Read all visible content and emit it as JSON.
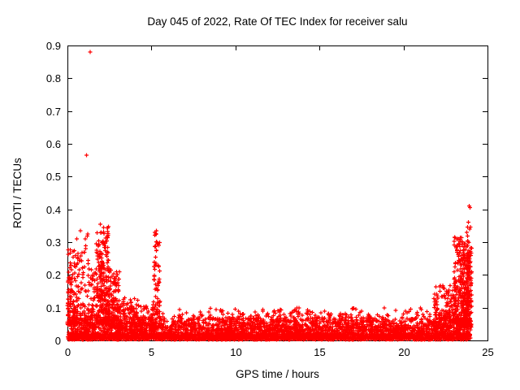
{
  "chart_data": {
    "type": "scatter",
    "title": "Day 045 of 2022, Rate Of TEC Index for receiver salu",
    "xlabel": "GPS time / hours",
    "ylabel": "ROTI / TECUs",
    "xlim": [
      0,
      25
    ],
    "ylim": [
      0,
      0.9
    ],
    "x_tick_values": [
      0,
      5,
      10,
      15,
      20,
      25
    ],
    "x_tick_labels": [
      "0",
      "5",
      "10",
      "15",
      "20",
      "25"
    ],
    "y_tick_values": [
      0,
      0.1,
      0.2,
      0.3,
      0.4,
      0.5,
      0.6,
      0.7,
      0.8,
      0.9
    ],
    "y_tick_labels": [
      "0",
      "0.1",
      "0.2",
      "0.3",
      "0.4",
      "0.5",
      "0.6",
      "0.7",
      "0.8",
      "0.9"
    ],
    "grid": false,
    "legend": "none",
    "marker": "plus",
    "marker_color": "#ff0000",
    "axis_color": "#000000",
    "seed": 45,
    "scatter_segments": [
      {
        "x0": 0.0,
        "x1": 24.0,
        "n": 1400,
        "ymin": 0.002,
        "ymax": 0.02,
        "bias": 1.0
      },
      {
        "x0": 0.0,
        "x1": 24.0,
        "n": 2200,
        "ymin": 0.004,
        "ymax": 0.07,
        "bias": 2.2
      },
      {
        "x0": 0.0,
        "x1": 24.0,
        "n": 500,
        "ymin": 0.02,
        "ymax": 0.1,
        "bias": 3.0
      },
      {
        "x0": 0.0,
        "x1": 0.6,
        "n": 130,
        "ymin": 0.05,
        "ymax": 0.28,
        "bias": 1.8
      },
      {
        "x0": 0.55,
        "x1": 1.25,
        "n": 90,
        "ymin": 0.05,
        "ymax": 0.33,
        "bias": 2.0
      },
      {
        "x0": 1.2,
        "x1": 1.7,
        "n": 60,
        "ymin": 0.04,
        "ymax": 0.22,
        "bias": 2.0
      },
      {
        "x0": 1.7,
        "x1": 2.45,
        "n": 280,
        "ymin": 0.05,
        "ymax": 0.35,
        "bias": 1.8
      },
      {
        "x0": 2.4,
        "x1": 3.1,
        "n": 150,
        "ymin": 0.04,
        "ymax": 0.22,
        "bias": 2.0
      },
      {
        "x0": 3.0,
        "x1": 4.3,
        "n": 130,
        "ymin": 0.03,
        "ymax": 0.13,
        "bias": 2.0
      },
      {
        "x0": 4.2,
        "x1": 5.1,
        "n": 70,
        "ymin": 0.03,
        "ymax": 0.11,
        "bias": 2.2
      },
      {
        "x0": 5.15,
        "x1": 5.5,
        "n": 55,
        "ymin": 0.08,
        "ymax": 0.33,
        "bias": 1.1
      },
      {
        "x0": 5.0,
        "x1": 5.7,
        "n": 45,
        "ymin": 0.04,
        "ymax": 0.12,
        "bias": 2.0
      },
      {
        "x0": 6.0,
        "x1": 22.0,
        "n": 420,
        "ymin": 0.03,
        "ymax": 0.09,
        "bias": 2.4
      },
      {
        "x0": 11.0,
        "x1": 14.0,
        "n": 80,
        "ymin": 0.04,
        "ymax": 0.1,
        "bias": 2.0
      },
      {
        "x0": 16.0,
        "x1": 18.0,
        "n": 50,
        "ymin": 0.04,
        "ymax": 0.1,
        "bias": 2.2
      },
      {
        "x0": 21.8,
        "x1": 23.0,
        "n": 160,
        "ymin": 0.04,
        "ymax": 0.17,
        "bias": 2.0
      },
      {
        "x0": 23.0,
        "x1": 23.9,
        "n": 280,
        "ymin": 0.05,
        "ymax": 0.32,
        "bias": 1.7
      },
      {
        "x0": 23.4,
        "x1": 24.05,
        "n": 150,
        "ymin": 0.04,
        "ymax": 0.3,
        "bias": 1.6
      },
      {
        "x0": 23.75,
        "x1": 24.05,
        "n": 50,
        "ymin": 0.08,
        "ymax": 0.38,
        "bias": 1.4
      }
    ],
    "outlier_points": [
      [
        1.35,
        0.88
      ],
      [
        1.14,
        0.565
      ],
      [
        0.78,
        0.335
      ],
      [
        1.95,
        0.355
      ],
      [
        5.3,
        0.335
      ],
      [
        23.9,
        0.41
      ],
      [
        23.95,
        0.405
      ]
    ]
  }
}
